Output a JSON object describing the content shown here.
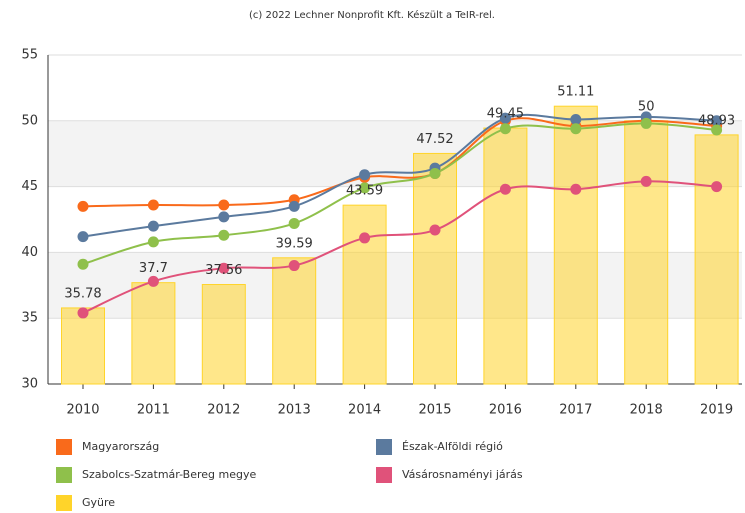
{
  "chart_data": {
    "type": "bar",
    "title": "(c) 2022 Lechner Nonprofit Kft. Készült a TeIR-rel.",
    "categories": [
      "2010",
      "2011",
      "2012",
      "2013",
      "2014",
      "2015",
      "2016",
      "2017",
      "2018",
      "2019"
    ],
    "ylim": [
      30,
      55
    ],
    "yticks": [
      30,
      35,
      40,
      45,
      50,
      55
    ],
    "grid": true,
    "series": [
      {
        "name": "Magyarország",
        "type": "line",
        "color": "#f96a1b",
        "values": [
          43.5,
          43.6,
          43.6,
          44.0,
          45.7,
          46.0,
          50.0,
          49.6,
          50.0,
          49.6
        ]
      },
      {
        "name": "Észak-Alföldi régió",
        "type": "line",
        "color": "#5b7a9e",
        "values": [
          41.2,
          42.0,
          42.7,
          43.5,
          45.9,
          46.4,
          50.2,
          50.1,
          50.3,
          50.0
        ]
      },
      {
        "name": "Szabolcs-Szatmár-Bereg megye",
        "type": "line",
        "color": "#8fc04b",
        "values": [
          39.1,
          40.8,
          41.3,
          42.2,
          44.9,
          46.0,
          49.4,
          49.4,
          49.8,
          49.3
        ]
      },
      {
        "name": "Vásárosnaményi járás",
        "type": "line",
        "color": "#e0527a",
        "values": [
          35.4,
          37.8,
          38.8,
          39.0,
          41.1,
          41.7,
          44.8,
          44.8,
          45.4,
          45.0
        ]
      },
      {
        "name": "Gyüre",
        "type": "bar",
        "color": "#ffd42a",
        "values": [
          35.78,
          37.7,
          37.56,
          39.59,
          43.59,
          47.52,
          49.45,
          51.11,
          50,
          48.93
        ]
      }
    ]
  }
}
